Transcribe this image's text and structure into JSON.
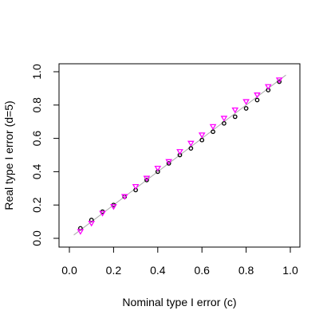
{
  "chart_data": {
    "type": "scatter",
    "xlabel": "Nominal type I error (c)",
    "ylabel": "Real type I error (d=5)",
    "xlim": [
      0,
      1
    ],
    "ylim": [
      0,
      1
    ],
    "x_ticks": [
      "0.0",
      "0.2",
      "0.4",
      "0.6",
      "0.8",
      "1.0"
    ],
    "y_ticks": [
      "0.0",
      "0.2",
      "0.4",
      "0.6",
      "0.8",
      "1.0"
    ],
    "grid": false,
    "reference_line": {
      "from": [
        0.02,
        0.02
      ],
      "to": [
        0.98,
        0.98
      ],
      "color": "#aaaaaa"
    },
    "series": [
      {
        "marker": "circle",
        "color": "#000000",
        "x": [
          0.05,
          0.1,
          0.15,
          0.2,
          0.25,
          0.3,
          0.35,
          0.4,
          0.45,
          0.5,
          0.55,
          0.6,
          0.65,
          0.7,
          0.75,
          0.8,
          0.85,
          0.9,
          0.95
        ],
        "y": [
          0.06,
          0.11,
          0.16,
          0.2,
          0.25,
          0.29,
          0.35,
          0.4,
          0.45,
          0.5,
          0.54,
          0.59,
          0.64,
          0.69,
          0.73,
          0.78,
          0.83,
          0.89,
          0.94
        ]
      },
      {
        "marker": "triangle-down",
        "color": "#ff00ff",
        "x": [
          0.05,
          0.1,
          0.15,
          0.2,
          0.25,
          0.3,
          0.35,
          0.4,
          0.45,
          0.5,
          0.55,
          0.6,
          0.65,
          0.7,
          0.75,
          0.8,
          0.85,
          0.9,
          0.95
        ],
        "y": [
          0.04,
          0.09,
          0.15,
          0.19,
          0.25,
          0.31,
          0.36,
          0.42,
          0.46,
          0.52,
          0.57,
          0.62,
          0.67,
          0.72,
          0.77,
          0.82,
          0.86,
          0.91,
          0.95
        ]
      }
    ]
  }
}
